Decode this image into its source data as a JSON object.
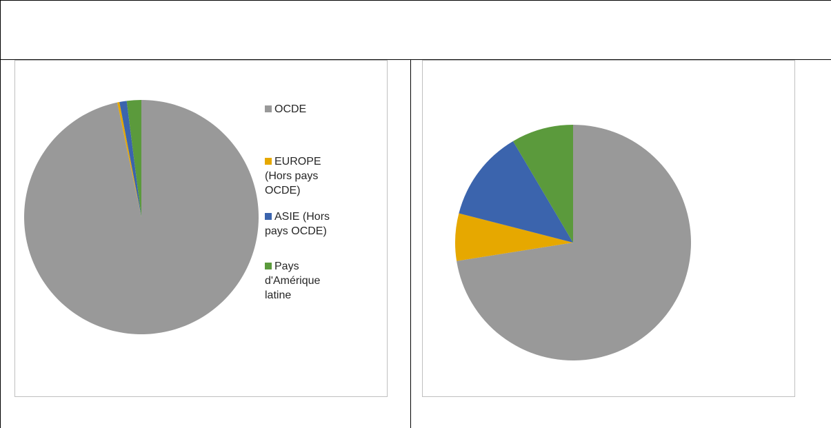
{
  "chart_data": [
    {
      "type": "pie",
      "categories": [
        "OCDE",
        "EUROPE (Hors pays OCDE)",
        "ASIE (Hors pays OCDE)",
        "Pays d'Amérique latine"
      ],
      "values": [
        96.7,
        0.3,
        1.0,
        2.0
      ],
      "start_angle_deg": 0,
      "direction": "clockwise",
      "legend": "right",
      "colors": [
        "#999999",
        "#e6a800",
        "#3b64ad",
        "#5b9a3c"
      ],
      "legend_lines": [
        [
          "OCDE"
        ],
        [
          "EUROPE",
          "(Hors pays",
          "OCDE)"
        ],
        [
          "ASIE (Hors",
          "pays OCDE)"
        ],
        [
          "Pays",
          "d'Amérique",
          "latine"
        ]
      ]
    },
    {
      "type": "pie",
      "categories": [
        "OCDE",
        "EUROPE (Hors pays OCDE)",
        "ASIE (Hors pays OCDE)",
        "Pays d'Amérique latine"
      ],
      "values": [
        72.5,
        6.5,
        12.5,
        8.5
      ],
      "start_angle_deg": 0,
      "direction": "clockwise",
      "legend": "none",
      "colors": [
        "#999999",
        "#e6a800",
        "#3b64ad",
        "#5b9a3c"
      ]
    }
  ]
}
